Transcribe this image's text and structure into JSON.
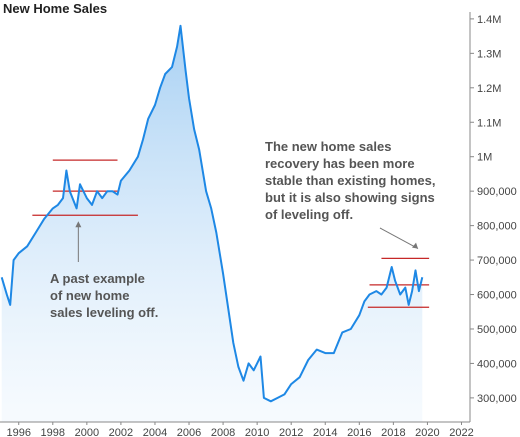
{
  "chart_data": {
    "type": "line",
    "title": "New Home Sales",
    "xlabel": "",
    "ylabel": "",
    "xlim": [
      1994.9,
      2022.5
    ],
    "ylim": [
      230000,
      1420000
    ],
    "x_ticks": [
      1996,
      1998,
      2000,
      2002,
      2004,
      2006,
      2008,
      2010,
      2012,
      2014,
      2016,
      2018,
      2020,
      2022
    ],
    "y_ticks": [
      {
        "value": 300000,
        "label": "300,000"
      },
      {
        "value": 400000,
        "label": "400,000"
      },
      {
        "value": 500000,
        "label": "500,000"
      },
      {
        "value": 600000,
        "label": "600,000"
      },
      {
        "value": 700000,
        "label": "700,000"
      },
      {
        "value": 800000,
        "label": "800,000"
      },
      {
        "value": 900000,
        "label": "900,000"
      },
      {
        "value": 1000000,
        "label": "1M"
      },
      {
        "value": 1100000,
        "label": "1.1M"
      },
      {
        "value": 1200000,
        "label": "1.2M"
      },
      {
        "value": 1300000,
        "label": "1.3M"
      },
      {
        "value": 1400000,
        "label": "1.4M"
      }
    ],
    "y_axis_side": "right",
    "grid": false,
    "series": [
      {
        "color": "#1e88e5",
        "points": [
          [
            1995.0,
            650000
          ],
          [
            1995.3,
            600000
          ],
          [
            1995.5,
            570000
          ],
          [
            1995.7,
            700000
          ],
          [
            1996.0,
            720000
          ],
          [
            1996.5,
            740000
          ],
          [
            1997.0,
            780000
          ],
          [
            1997.5,
            820000
          ],
          [
            1998.0,
            850000
          ],
          [
            1998.3,
            860000
          ],
          [
            1998.6,
            880000
          ],
          [
            1998.8,
            960000
          ],
          [
            1999.0,
            900000
          ],
          [
            1999.4,
            850000
          ],
          [
            1999.6,
            920000
          ],
          [
            2000.0,
            880000
          ],
          [
            2000.3,
            860000
          ],
          [
            2000.6,
            900000
          ],
          [
            2000.9,
            880000
          ],
          [
            2001.2,
            900000
          ],
          [
            2001.5,
            900000
          ],
          [
            2001.8,
            890000
          ],
          [
            2002.0,
            930000
          ],
          [
            2002.5,
            960000
          ],
          [
            2003.0,
            1000000
          ],
          [
            2003.3,
            1050000
          ],
          [
            2003.6,
            1110000
          ],
          [
            2004.0,
            1150000
          ],
          [
            2004.3,
            1200000
          ],
          [
            2004.6,
            1240000
          ],
          [
            2005.0,
            1260000
          ],
          [
            2005.3,
            1320000
          ],
          [
            2005.5,
            1380000
          ],
          [
            2005.8,
            1250000
          ],
          [
            2006.0,
            1170000
          ],
          [
            2006.3,
            1080000
          ],
          [
            2006.6,
            1020000
          ],
          [
            2007.0,
            900000
          ],
          [
            2007.3,
            850000
          ],
          [
            2007.6,
            780000
          ],
          [
            2008.0,
            660000
          ],
          [
            2008.3,
            560000
          ],
          [
            2008.6,
            460000
          ],
          [
            2008.9,
            390000
          ],
          [
            2009.2,
            350000
          ],
          [
            2009.5,
            400000
          ],
          [
            2009.8,
            380000
          ],
          [
            2010.0,
            400000
          ],
          [
            2010.2,
            420000
          ],
          [
            2010.4,
            300000
          ],
          [
            2010.8,
            290000
          ],
          [
            2011.2,
            300000
          ],
          [
            2011.6,
            310000
          ],
          [
            2012.0,
            340000
          ],
          [
            2012.5,
            360000
          ],
          [
            2013.0,
            410000
          ],
          [
            2013.5,
            440000
          ],
          [
            2014.0,
            430000
          ],
          [
            2014.5,
            430000
          ],
          [
            2015.0,
            490000
          ],
          [
            2015.5,
            500000
          ],
          [
            2016.0,
            540000
          ],
          [
            2016.3,
            580000
          ],
          [
            2016.6,
            600000
          ],
          [
            2017.0,
            610000
          ],
          [
            2017.3,
            600000
          ],
          [
            2017.6,
            620000
          ],
          [
            2017.9,
            680000
          ],
          [
            2018.1,
            640000
          ],
          [
            2018.4,
            600000
          ],
          [
            2018.7,
            620000
          ],
          [
            2018.9,
            570000
          ],
          [
            2019.1,
            610000
          ],
          [
            2019.3,
            670000
          ],
          [
            2019.5,
            610000
          ],
          [
            2019.7,
            650000
          ]
        ]
      }
    ],
    "reference_lines": [
      {
        "value": 990000,
        "x_from": 1998.0,
        "x_to": 2001.8,
        "color": "#c62828"
      },
      {
        "value": 900000,
        "x_from": 1998.0,
        "x_to": 2001.8,
        "color": "#c62828"
      },
      {
        "value": 830000,
        "x_from": 1996.8,
        "x_to": 2003.0,
        "color": "#c62828"
      },
      {
        "value": 705000,
        "x_from": 2017.3,
        "x_to": 2020.1,
        "color": "#c62828"
      },
      {
        "value": 628000,
        "x_from": 2016.6,
        "x_to": 2020.1,
        "color": "#c62828"
      },
      {
        "value": 563000,
        "x_from": 2016.5,
        "x_to": 2020.1,
        "color": "#c62828"
      }
    ],
    "annotations": [
      {
        "lines": [
          "A past example",
          "of new home",
          "sales leveling off."
        ],
        "target": [
          1999.5,
          830000
        ]
      },
      {
        "lines": [
          "The new home sales",
          "recovery has been more",
          "stable than existing homes,",
          "but it is also showing signs",
          "of leveling off."
        ],
        "target": [
          2019.8,
          710000
        ]
      }
    ]
  }
}
